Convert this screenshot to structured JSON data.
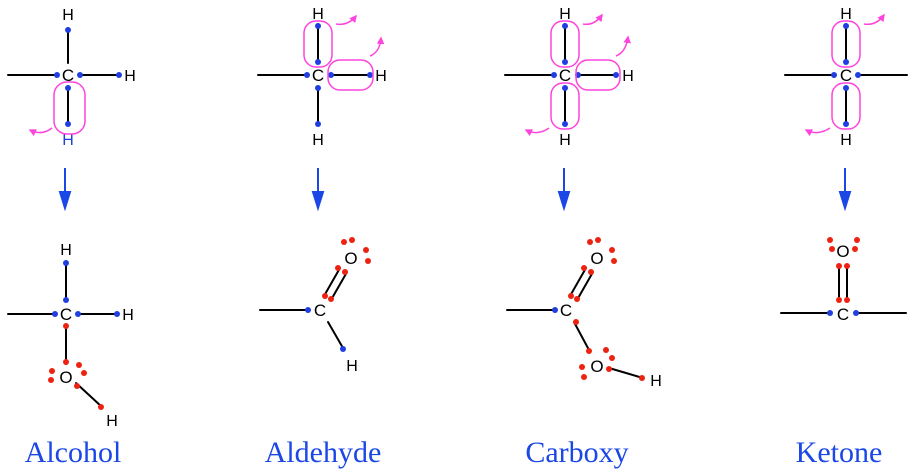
{
  "atoms": {
    "carbon": "C",
    "hydrogen": "H",
    "oxygen": "O"
  },
  "panels": [
    {
      "caption": "Alcohol"
    },
    {
      "caption": "Aldehyde"
    },
    {
      "caption": "Carboxy"
    },
    {
      "caption": "Ketone"
    }
  ],
  "colors": {
    "electron_bond": "#1f3fe0",
    "electron_oxygen": "#ee2211",
    "oxidation_loop": "#ff44dd",
    "reaction_arrow": "#1a47e6",
    "caption": "#1a47e6"
  },
  "icons": {
    "reaction_arrow": "down-arrow-icon",
    "electron_transfer": "curved-arrow-icon"
  }
}
